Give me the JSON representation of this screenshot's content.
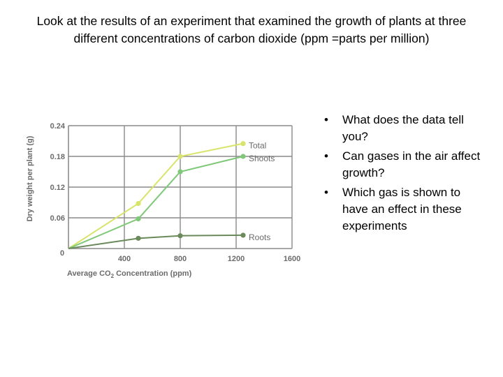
{
  "slide": {
    "title": "Look at the results of an experiment that examined the growth of plants at three different concentrations of carbon dioxide (ppm =parts per million)",
    "bullets": [
      "What does the data tell you?",
      "Can gases in the air affect growth?",
      "Which gas is shown to have an effect in these experiments"
    ]
  },
  "chart_data": {
    "type": "line",
    "title": "",
    "xlabel_parts": [
      "Average CO",
      "2",
      " Concentration (ppm)"
    ],
    "ylabel": "Dry weight per plant (g)",
    "xlim": [
      0,
      1600
    ],
    "ylim": [
      0,
      0.24
    ],
    "x_ticks": [
      {
        "value": 0,
        "label": "0"
      },
      {
        "value": 400,
        "label": "400"
      },
      {
        "value": 800,
        "label": "800"
      },
      {
        "value": 1200,
        "label": "1200"
      },
      {
        "value": 1600,
        "label": "1600"
      }
    ],
    "y_ticks": [
      {
        "value": 0.06,
        "label": "0.06"
      },
      {
        "value": 0.12,
        "label": "0.12"
      },
      {
        "value": 0.18,
        "label": "0.18"
      },
      {
        "value": 0.24,
        "label": "0.24"
      }
    ],
    "grid": true,
    "series": [
      {
        "name": "Total",
        "color": "#d8e46a",
        "points": [
          [
            0,
            0
          ],
          [
            500,
            0.088
          ],
          [
            800,
            0.18
          ],
          [
            1250,
            0.205
          ]
        ]
      },
      {
        "name": "Shoots",
        "color": "#7ec878",
        "points": [
          [
            0,
            0
          ],
          [
            500,
            0.058
          ],
          [
            800,
            0.15
          ],
          [
            1250,
            0.18
          ]
        ]
      },
      {
        "name": "Roots",
        "color": "#6a8a5a",
        "points": [
          [
            0,
            0
          ],
          [
            500,
            0.02
          ],
          [
            800,
            0.025
          ],
          [
            1250,
            0.026
          ]
        ]
      }
    ],
    "label_color": "#6b6b6b",
    "grid_color": "#8a8a8a"
  }
}
